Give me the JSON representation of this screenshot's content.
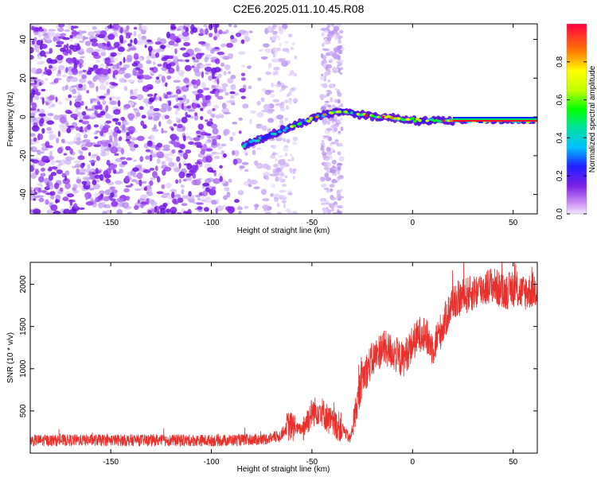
{
  "colors": {
    "snr_line": "#e8302c",
    "speckle": "#7a1ee8",
    "speckle_light": "#d9c4f7",
    "axis": "#000000"
  },
  "chart_data": [
    {
      "type": "heatmap",
      "title": "C2E6.2025.011.10.45.R08",
      "xlabel": "Height of straight line (km)",
      "ylabel": "Frequency (Hz)",
      "xlim": [
        -190,
        62
      ],
      "ylim": [
        -50,
        48
      ],
      "xticks": [
        -150,
        -100,
        -50,
        0,
        50
      ],
      "yticks": [
        -40,
        -20,
        0,
        20,
        40
      ],
      "colorbar": {
        "label": "Normalized spectral amplitude",
        "range": [
          0,
          1
        ],
        "ticks": [
          "0.0",
          "0.2",
          "0.4",
          "0.6",
          "0.8"
        ]
      },
      "signal_trace": {
        "x": [
          -84,
          -75,
          -65,
          -55,
          -45,
          -35,
          -25,
          -15,
          -5,
          5,
          15,
          25,
          35,
          45,
          55,
          62
        ],
        "y": [
          -15,
          -11,
          -7,
          -3,
          1,
          3,
          1,
          0,
          -1,
          -2,
          -2,
          -2,
          -2,
          -2,
          -2,
          -2
        ]
      },
      "noise_region_x": [
        -190,
        -75
      ],
      "noise_band_x": [
        -45,
        -35
      ]
    },
    {
      "type": "line",
      "title": "",
      "xlabel": "Height of straight line (km)",
      "ylabel": "SNR (10 * v/v)",
      "xlim": [
        -190,
        62
      ],
      "ylim": [
        0,
        2260
      ],
      "xticks": [
        -150,
        -100,
        -50,
        0,
        50
      ],
      "yticks": [
        500,
        1000,
        1500,
        2000
      ],
      "series": [
        {
          "name": "SNR",
          "x": [
            -190,
            -150,
            -100,
            -75,
            -66,
            -62,
            -55,
            -50,
            -46,
            -40,
            -35,
            -31,
            -25,
            -20,
            -15,
            -10,
            -5,
            0,
            5,
            10,
            15,
            20,
            25,
            30,
            35,
            40,
            45,
            50,
            55,
            62
          ],
          "y": [
            150,
            155,
            150,
            160,
            200,
            320,
            280,
            480,
            520,
            350,
            300,
            160,
            900,
            1100,
            1250,
            1200,
            1100,
            1300,
            1450,
            1250,
            1500,
            1800,
            1850,
            1900,
            1950,
            2000,
            1900,
            1950,
            1900,
            1950
          ]
        }
      ]
    }
  ]
}
